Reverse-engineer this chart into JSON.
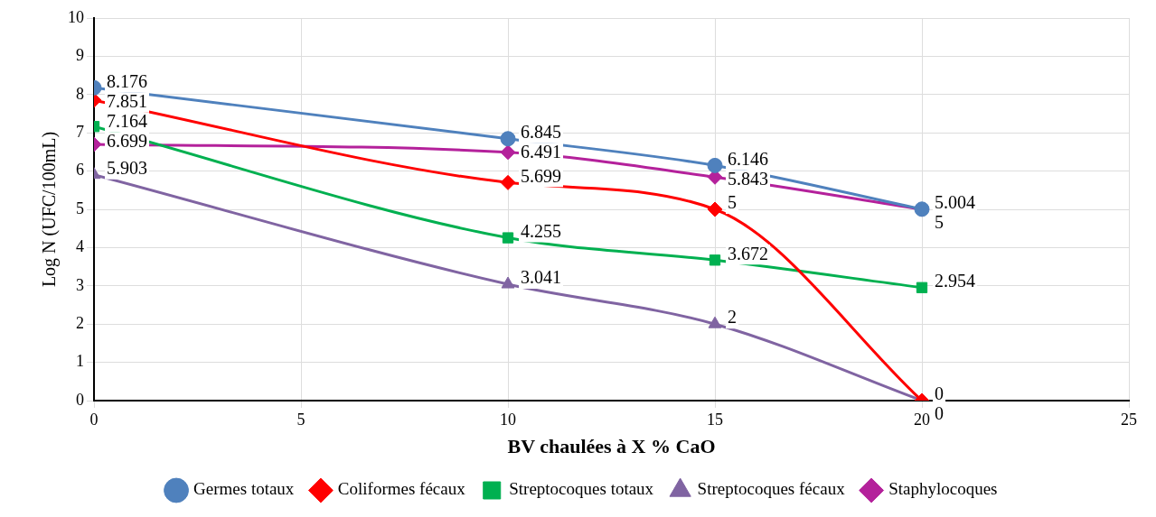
{
  "chart_data": {
    "type": "line",
    "xlabel": "BV chaulées à X % CaO",
    "ylabel": "Log N (UFC/100mL)",
    "x": [
      0,
      10,
      15,
      20
    ],
    "series": [
      {
        "name": "Germes totaux",
        "color": "#4f81bd",
        "marker": "circle",
        "values": [
          8.176,
          6.845,
          6.146,
          5.004
        ]
      },
      {
        "name": "Coliformes fécaux",
        "color": "#ff0000",
        "marker": "diamond",
        "values": [
          7.851,
          5.699,
          5,
          0
        ]
      },
      {
        "name": "Streptocoques totaux",
        "color": "#00b050",
        "marker": "square",
        "values": [
          7.164,
          4.255,
          3.672,
          2.954
        ]
      },
      {
        "name": "Streptocoques fécaux",
        "color": "#8064a2",
        "marker": "triangle",
        "values": [
          5.903,
          3.041,
          2,
          0
        ]
      },
      {
        "name": "Staphylocoques",
        "color": "#b4219b",
        "marker": "diamond",
        "values": [
          6.699,
          6.491,
          5.843,
          5
        ]
      }
    ],
    "xlim": [
      0,
      25
    ],
    "xticks": [
      0,
      5,
      10,
      15,
      20,
      25
    ],
    "ylim": [
      0,
      10
    ],
    "yticks": [
      0,
      1,
      2,
      3,
      4,
      5,
      6,
      7,
      8,
      9,
      10
    ],
    "grid": true,
    "legend": "bottom",
    "data_labels": true
  }
}
